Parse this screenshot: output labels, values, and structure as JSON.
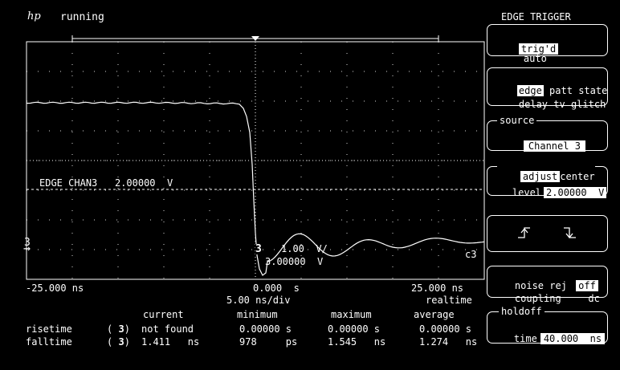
{
  "header": {
    "logo": "hp",
    "status": "running"
  },
  "grid_overlay": {
    "edge_label": "EDGE",
    "chan_label": "CHAN3",
    "level_value": "2.00000",
    "level_unit": "V",
    "channel_marker": "3",
    "channel_scale": "1.00",
    "channel_scale_unit": "V/",
    "channel_offset": "3.00000",
    "channel_offset_unit": "V",
    "channel_tag": "c3"
  },
  "timebase": {
    "left": "-25.000 ns",
    "center": "0.000  s",
    "right": "25.000 ns",
    "per_div": "5.00 ns/div",
    "mode": "realtime"
  },
  "measurements": {
    "headers": [
      "current",
      "minimum",
      "maximum",
      "average"
    ],
    "rows": [
      {
        "name": "risetime",
        "channel": "3",
        "current": "not found",
        "minimum": "0.00000 s",
        "maximum": "0.00000 s",
        "average": "0.00000 s"
      },
      {
        "name": "falltime",
        "channel": "3",
        "current": "1.411   ns",
        "minimum": "978     ps",
        "maximum": "1.545   ns",
        "average": "1.274   ns"
      }
    ]
  },
  "panel": {
    "title": "EDGE TRIGGER",
    "trig_mode": {
      "selected": "trig'd",
      "other": "auto"
    },
    "trigger_types": {
      "line1": [
        {
          "label": "edge",
          "selected": true
        },
        {
          "label": "patt",
          "selected": false
        },
        {
          "label": "state",
          "selected": false
        }
      ],
      "line2": [
        {
          "label": "delay",
          "selected": false
        },
        {
          "label": "tv",
          "selected": false
        },
        {
          "label": "glitch",
          "selected": false
        }
      ]
    },
    "source": {
      "title": "source",
      "value": "Channel 3"
    },
    "level": {
      "adjust": "adjust",
      "center": "center",
      "label": "level",
      "value": "2.00000",
      "unit": "V"
    },
    "slope": {
      "rising": "rising-edge-icon",
      "falling": "falling-edge-icon"
    },
    "noise": {
      "noise_label": "noise rej",
      "noise_value": "off",
      "coupling_label": "coupling",
      "coupling_value": "dc"
    },
    "holdoff": {
      "title": "holdoff",
      "label": "time",
      "value": "40.000",
      "unit": "ns"
    }
  },
  "colors": {
    "background": "#000000",
    "foreground": "#ffffff",
    "grid": "#ffffff"
  }
}
